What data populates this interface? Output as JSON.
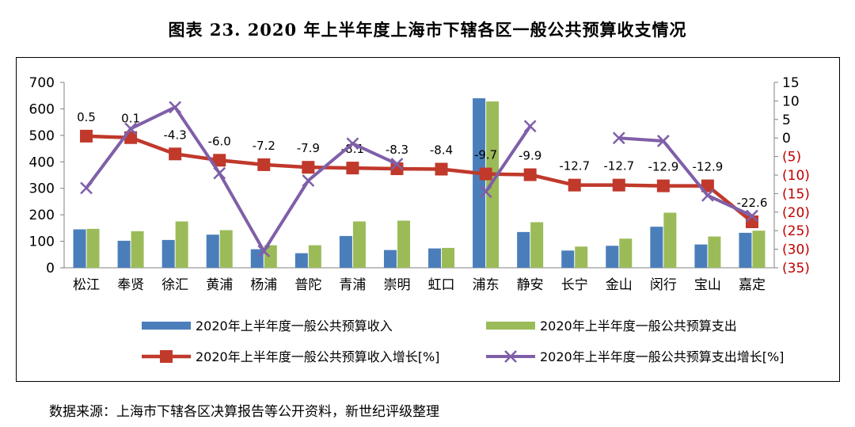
{
  "title": "图表 23. 2020 年上半年度上海市下辖各区一般公共预算收支情况",
  "source": "数据来源：上海市下辖各区决算报告等公开资料，新世纪评级整理",
  "colors": {
    "revenue": "#4A7EBB",
    "expenditure": "#9BBB59",
    "revenue_growth": "#C0392B",
    "expenditure_growth": "#7F5FA8",
    "right_axis_text": "#C00000"
  },
  "chart_data": {
    "type": "bar",
    "categories": [
      "松江",
      "奉贤",
      "徐汇",
      "黄浦",
      "杨浦",
      "普陀",
      "青浦",
      "崇明",
      "虹口",
      "浦东",
      "静安",
      "长宁",
      "金山",
      "闵行",
      "宝山",
      "嘉定"
    ],
    "y_left": {
      "ylim": [
        0,
        700
      ],
      "ticks": [
        "0",
        "100",
        "200",
        "300",
        "400",
        "500",
        "600",
        "700"
      ]
    },
    "y_right": {
      "ylim": [
        -35,
        15
      ],
      "tick_values": [
        15,
        10,
        5,
        0,
        -5,
        -10,
        -15,
        -20,
        -25,
        -30,
        -35
      ],
      "ticks": [
        "15",
        "10",
        "5",
        "0",
        "(5)",
        "(10)",
        "(15)",
        "(20)",
        "(25)",
        "(30)",
        "(35)"
      ]
    },
    "series": [
      {
        "name": "2020年上半年度一般公共预算收入",
        "type": "bar",
        "axis": "left",
        "values": [
          145,
          102,
          105,
          125,
          70,
          55,
          120,
          67,
          73,
          640,
          135,
          65,
          83,
          155,
          88,
          132
        ]
      },
      {
        "name": "2020年上半年度一般公共预算支出",
        "type": "bar",
        "axis": "left",
        "values": [
          147,
          138,
          175,
          142,
          85,
          85,
          175,
          178,
          75,
          628,
          172,
          80,
          110,
          208,
          118,
          140
        ]
      },
      {
        "name": "2020年上半年度一般公共预算收入增长[%]",
        "type": "line",
        "axis": "right",
        "values": [
          0.5,
          0.1,
          -4.3,
          -6.0,
          -7.2,
          -7.9,
          -8.1,
          -8.3,
          -8.4,
          -9.7,
          -9.9,
          -12.7,
          -12.7,
          -12.9,
          -12.9,
          -22.6
        ],
        "labels": [
          "0.5",
          "0.1",
          "-4.3",
          "-6.0",
          "-7.2",
          "-7.9",
          "-8.1",
          "-8.3",
          "-8.4",
          "-9.7",
          "-9.9",
          "-12.7",
          "-12.7",
          "-12.9",
          "-12.9",
          "-22.6"
        ]
      },
      {
        "name": "2020年上半年度一般公共预算支出增长[%]",
        "type": "line",
        "axis": "right",
        "segments": [
          {
            "start": 0,
            "values": [
              -13.5,
              2.5,
              8.3,
              -9.5,
              -30.5,
              -11.5,
              -1.5,
              -7.0,
              null,
              -14.5,
              3.2
            ]
          },
          {
            "start": 12,
            "values": [
              0.0,
              -0.8,
              -15.5,
              -21.0
            ]
          }
        ]
      }
    ]
  }
}
